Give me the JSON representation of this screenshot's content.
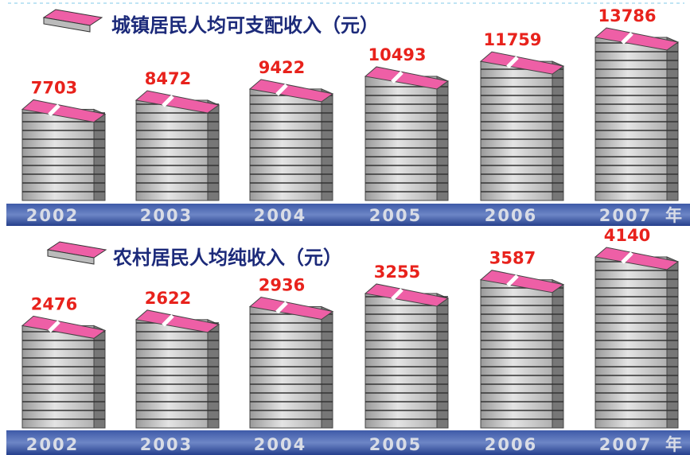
{
  "chart_data": [
    {
      "type": "bar",
      "title": "城镇居民人均可支配收入（元）",
      "categories": [
        "2002",
        "2003",
        "2004",
        "2005",
        "2006",
        "2007"
      ],
      "x_unit": "年",
      "values": [
        7703,
        8472,
        9422,
        10493,
        11759,
        13786
      ],
      "color": "#ee5fa6",
      "label_color": "#e8221c"
    },
    {
      "type": "bar",
      "title": "农村居民人均纯收入（元）",
      "categories": [
        "2002",
        "2003",
        "2004",
        "2005",
        "2006",
        "2007"
      ],
      "x_unit": "年",
      "values": [
        2476,
        2622,
        2936,
        3255,
        3587,
        4140
      ],
      "color": "#ee5fa6",
      "label_color": "#e8221c"
    }
  ]
}
